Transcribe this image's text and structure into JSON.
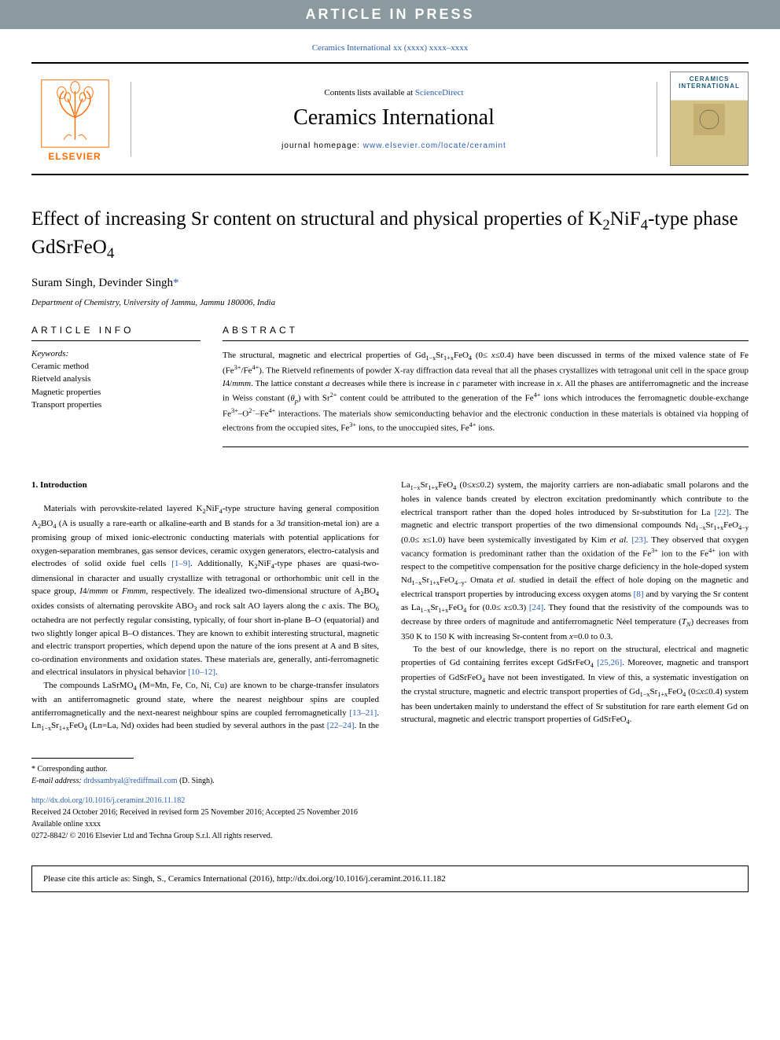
{
  "banner": "ARTICLE IN PRESS",
  "citation_top": "Ceramics International xx (xxxx) xxxx–xxxx",
  "header": {
    "elsevier": "ELSEVIER",
    "contents_prefix": "Contents lists available at ",
    "contents_link": "ScienceDirect",
    "journal": "Ceramics International",
    "homepage_prefix": "journal homepage: ",
    "homepage_url": "www.elsevier.com/locate/ceramint",
    "cover_text": "CERAMICS INTERNATIONAL"
  },
  "title_html": "Effect of increasing Sr content on structural and physical properties of K<sub>2</sub>NiF<sub>4</sub>-type phase GdSrFeO<sub>4</sub>",
  "authors_html": "Suram Singh, Devinder Singh<span class=\"corr-mark\">*</span>",
  "affiliation": "Department of Chemistry, University of Jammu, Jammu 180006, India",
  "info_label": "ARTICLE INFO",
  "abstract_label": "ABSTRACT",
  "keywords_heading": "Keywords:",
  "keywords": [
    "Ceramic method",
    "Rietveld analysis",
    "Magnetic properties",
    "Transport properties"
  ],
  "abstract_html": "The structural, magnetic and electrical properties of Gd<sub>1−x</sub>Sr<sub>1+x</sub>FeO<sub>4</sub> (0≤ <i>x</i>≤0.4) have been discussed in terms of the mixed valence state of Fe (Fe<sup>3+</sup>/Fe<sup>4+</sup>). The Rietveld refinements of powder X-ray diffraction data reveal that all the phases crystallizes with tetragonal unit cell in the space group <i>I</i>4/<i>mmm</i>. The lattice constant <i>a</i> decreases while there is increase in <i>c</i> parameter with increase in <i>x</i>. All the phases are antiferromagnetic and the increase in Weiss constant (<i>θ<sub>p</sub></i>) with Sr<sup>2+</sup> content could be attributed to the generation of the Fe<sup>4+</sup> ions which introduces the ferromagnetic double-exchange Fe<sup>3+</sup>–O<sup>2−</sup>–Fe<sup>4+</sup> interactions. The materials show semiconducting behavior and the electronic conduction in these materials is obtained via hopping of electrons from the occupied sites, Fe<sup>3+</sup> ions, to the unoccupied sites, Fe<sup>4+</sup> ions.",
  "intro_heading": "1. Introduction",
  "paragraphs": [
    "Materials with perovskite-related layered K<sub>2</sub>NiF<sub>4</sub>-type structure having general composition A<sub>2</sub>BO<sub>4</sub> (A is usually a rare-earth or alkaline-earth and B stands for a 3<i>d</i> transition-metal ion) are a promising group of mixed ionic-electronic conducting materials with potential applications for oxygen-separation membranes, gas sensor devices, ceramic oxygen generators, electro-catalysis and electrodes of solid oxide fuel cells <span class=\"ref-link\">[1–9]</span>. Additionally, K<sub>2</sub>NiF<sub>4</sub>-type phases are quasi-two-dimensional in character and usually crystallize with tetragonal or orthorhombic unit cell in the space group, <i>I</i>4/<i>mmm</i> or <i>Fmmm</i>, respectively. The idealized two-dimensional structure of A<sub>2</sub>BO<sub>4</sub> oxides consists of alternating perovskite ABO<sub>3</sub> and rock salt AO layers along the <i>c</i> axis. The BO<sub>6</sub> octahedra are not perfectly regular consisting, typically, of four short in-plane B–O (equatorial) and two slightly longer apical B–O distances. They are known to exhibit interesting structural, magnetic and electric transport properties, which depend upon the nature of the ions present at A and B sites, co-ordination environments and oxidation states. These materials are, generally, anti-ferromagnetic and electrical insulators in physical behavior <span class=\"ref-link\">[10–12]</span>.",
    "The compounds LaSrMO<sub>4</sub> (M=Mn, Fe, Co, Ni, Cu) are known to be charge-transfer insulators with an antiferromagnetic ground state, where the nearest neighbour spins are coupled antiferromagnetically and the next-nearest neighbour spins are coupled ferromagnetically <span class=\"ref-link\">[13–21]</span>. Ln<sub>1−x</sub>Sr<sub>1+x</sub>FeO<sub>4</sub> (Ln=La, Nd) oxides had been studied by several authors in the past <span class=\"ref-link\">[22–24]</span>. In the La<sub>1−x</sub>Sr<sub>1+x</sub>FeO<sub>4</sub> (0≤<i>x</i>≤0.2) system, the majority carriers are non-adiabatic small polarons and the holes in valence bands created by electron excitation predominantly which contribute to the electrical transport rather than the doped holes introduced by Sr-substitution for La <span class=\"ref-link\">[22]</span>. The magnetic and electric transport properties of the two dimensional compounds Nd<sub>1−x</sub>Sr<sub>1+x</sub>FeO<sub>4−y</sub> (0.0≤ <i>x</i>≤1.0) have been systemically investigated by Kim <i>et al.</i> <span class=\"ref-link\">[23]</span>. They observed that oxygen vacancy formation is predominant rather than the oxidation of the Fe<sup>3+</sup> ion to the Fe<sup>4+</sup> ion with respect to the competitive compensation for the positive charge deficiency in the hole-doped system Nd<sub>1−x</sub>Sr<sub>1+x</sub>FeO<sub>4−y</sub>. Omata <i>et al.</i> studied in detail the effect of hole doping on the magnetic and electrical transport properties by introducing excess oxygen atoms <span class=\"ref-link\">[8]</span> and by varying the Sr content as La<sub>1−x</sub>Sr<sub>1+x</sub>FeO<sub>4</sub> for (0.0≤ <i>x</i>≤0.3) <span class=\"ref-link\">[24]</span>. They found that the resistivity of the compounds was to decrease by three orders of magnitude and antiferromagnetic Néel temperature (<i>T<sub>N</sub></i>) decreases from 350 K to 150 K with increasing Sr-content from <i>x</i>=0.0 to 0.3.",
    "To the best of our knowledge, there is no report on the structural, electrical and magnetic properties of Gd containing ferrites except GdSrFeO<sub>4</sub> <span class=\"ref-link\">[25,26]</span>. Moreover, magnetic and transport properties of GdSrFeO<sub>4</sub> have not been investigated. In view of this, a systematic investigation on the crystal structure, magnetic and electric transport properties of Gd<sub>1−x</sub>Sr<sub>1+x</sub>FeO<sub>4</sub> (0≤<i>x</i>≤0.4) system has been undertaken mainly to understand the effect of Sr substitution for rare earth element Gd on structural, magnetic and electric transport properties of GdSrFeO<sub>4</sub>."
  ],
  "footer": {
    "corresponding": "* Corresponding author.",
    "email_label": "E-mail address: ",
    "email": "drdssambyal@rediffmail.com",
    "email_suffix": " (D. Singh).",
    "doi": "http://dx.doi.org/10.1016/j.ceramint.2016.11.182",
    "received": "Received 24 October 2016; Received in revised form 25 November 2016; Accepted 25 November 2016",
    "available": "Available online xxxx",
    "copyright": "0272-8842/ © 2016 Elsevier Ltd and Techna Group S.r.l. All rights reserved."
  },
  "cite_box": "Please cite this article as: Singh, S., Ceramics International (2016), http://dx.doi.org/10.1016/j.ceramint.2016.11.182"
}
